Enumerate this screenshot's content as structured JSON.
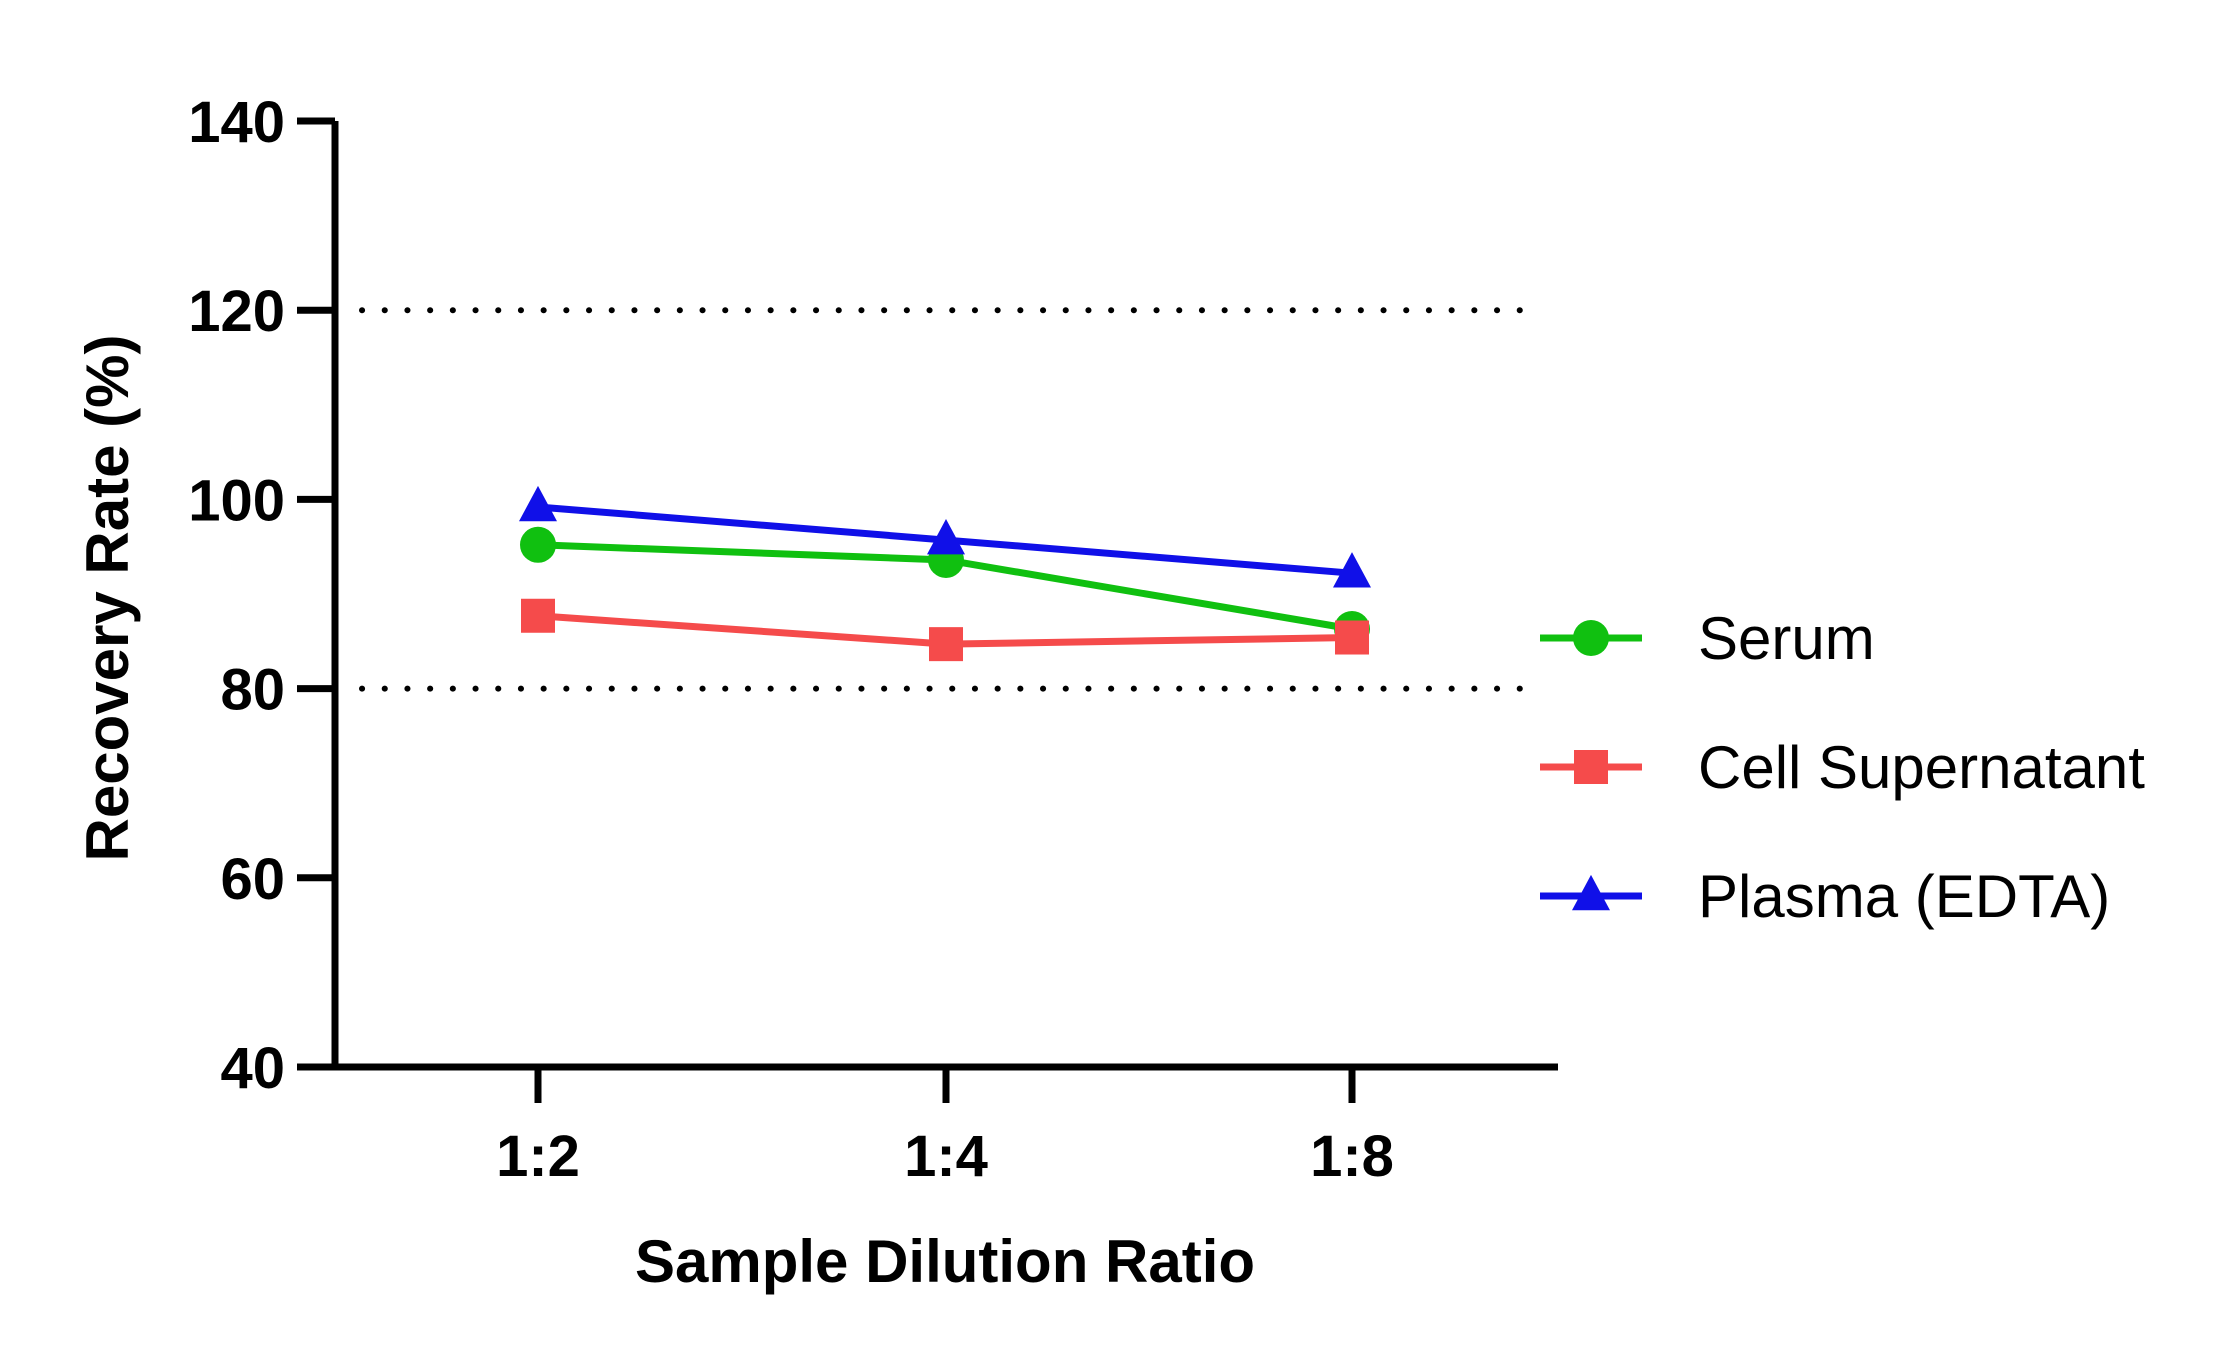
{
  "chart_data": {
    "type": "line",
    "title": "",
    "xlabel": "Sample Dilution Ratio",
    "ylabel": "Recovery Rate (%)",
    "categories": [
      "1:2",
      "1:4",
      "1:8"
    ],
    "ylim": [
      40,
      140
    ],
    "yticks": [
      40,
      60,
      80,
      100,
      120,
      140
    ],
    "reference_lines": [
      120,
      80
    ],
    "grid": false,
    "legend_position": "right",
    "series": [
      {
        "name": "Serum",
        "values": [
          95.2,
          93.6,
          86.3
        ],
        "color": "#10c010",
        "marker": "circle"
      },
      {
        "name": "Cell Supernatant",
        "values": [
          87.7,
          84.7,
          85.4
        ],
        "color": "#f54b4b",
        "marker": "square"
      },
      {
        "name": "Plasma (EDTA)",
        "values": [
          99.2,
          95.7,
          92.2
        ],
        "color": "#1010e8",
        "marker": "triangle"
      }
    ]
  }
}
